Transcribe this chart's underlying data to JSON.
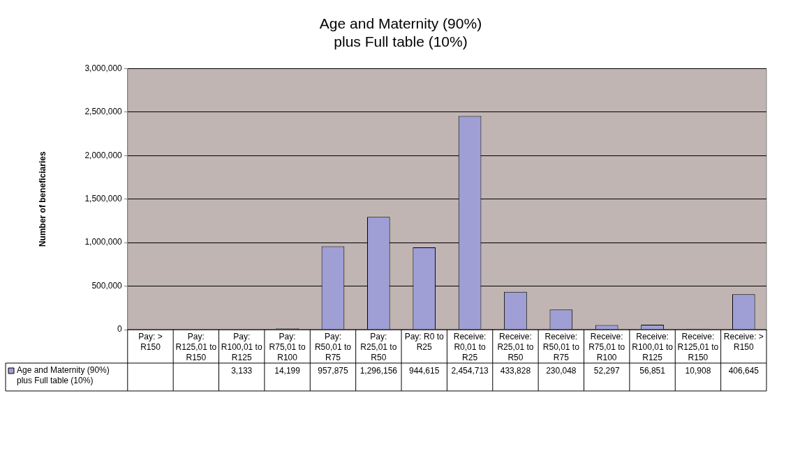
{
  "chart_data": {
    "type": "bar",
    "title": "Age and Maternity (90%)\nplus Full table (10%)",
    "ylabel": "Number of beneficiaries",
    "categories": [
      "Pay: > R150",
      "Pay: R125,01 to R150",
      "Pay: R100,01 to R125",
      "Pay: R75,01 to R100",
      "Pay: R50,01 to R75",
      "Pay: R25,01 to R50",
      "Pay: R0 to R25",
      "Receive: R0,01 to R25",
      "Receive: R25,01 to R50",
      "Receive: R50,01 to R75",
      "Receive: R75,01 to R100",
      "Receive: R100,01 to R125",
      "Receive: R125,01 to R150",
      "Receive: > R150"
    ],
    "series": [
      {
        "name": "Age and Maternity (90%) plus Full table (10%)",
        "color": "#9f9fd6",
        "values": [
          null,
          null,
          3133,
          14199,
          957875,
          1296156,
          944615,
          2454713,
          433828,
          230048,
          52297,
          56851,
          10908,
          406645
        ],
        "value_labels": [
          null,
          null,
          "3,133",
          "14,199",
          "957,875",
          "1,296,156",
          "944,615",
          "2,454,713",
          "433,828",
          "230,048",
          "52,297",
          "56,851",
          "10,908",
          "406,645"
        ]
      }
    ],
    "ylim": [
      0,
      3000000
    ],
    "yticks": [
      0,
      {
        "value": 500000,
        "label": "500,000"
      },
      {
        "value": 1000000,
        "label": "1,000,000"
      },
      {
        "value": 1500000,
        "label": "1,500,000"
      },
      {
        "value": 2000000,
        "label": "2,000,000"
      },
      {
        "value": 2500000,
        "label": "2,500,000"
      },
      {
        "value": 3000000,
        "label": "3,000,000"
      }
    ],
    "grid": "y",
    "legend": "bottom"
  }
}
